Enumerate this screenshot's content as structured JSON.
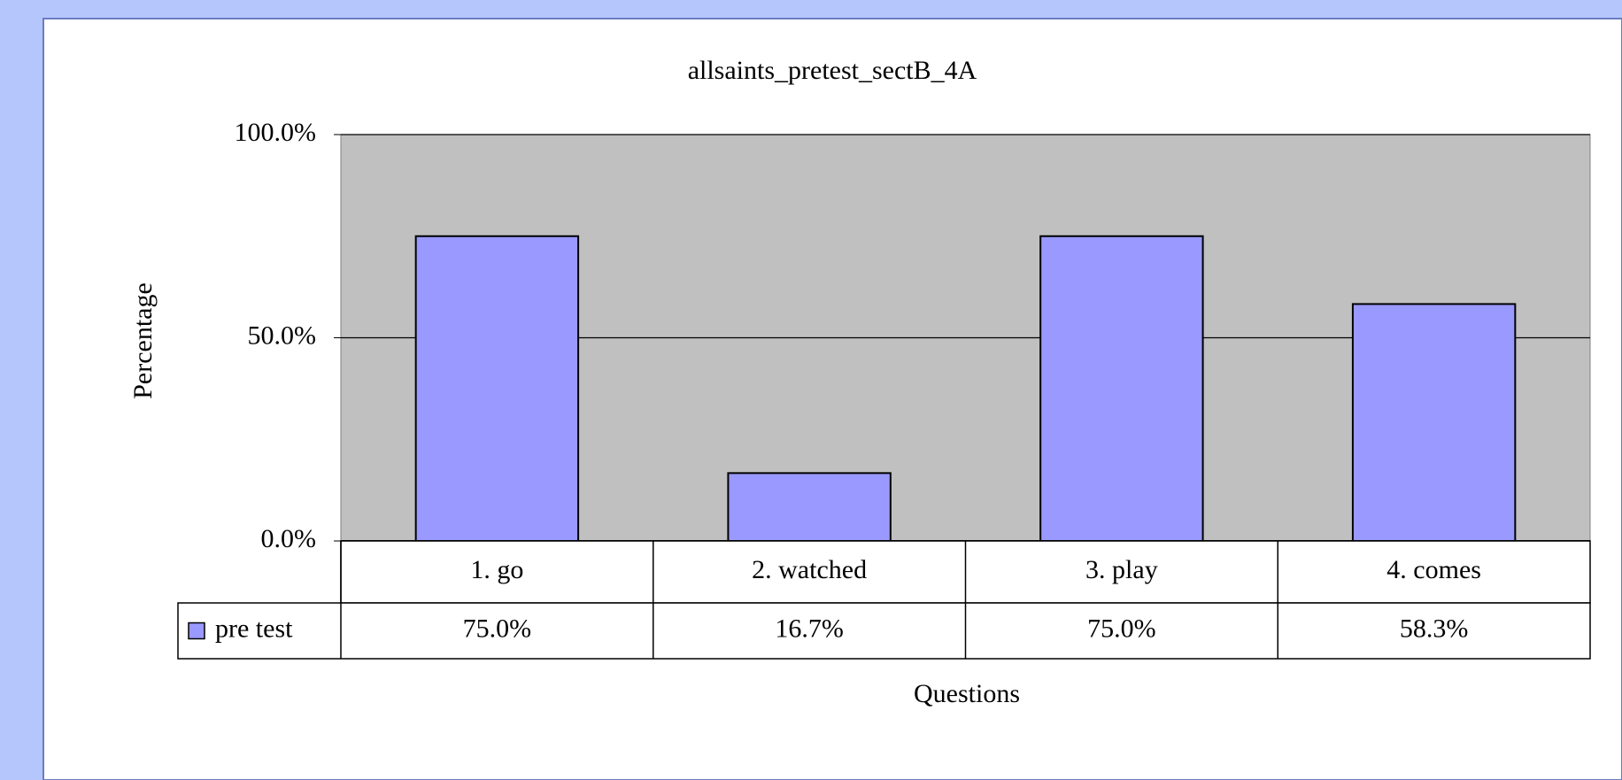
{
  "chart_data": {
    "type": "bar",
    "title": "allsaints_pretest_sectB_4A",
    "x_label": "Questions",
    "y_label": "Percentage",
    "categories": [
      "1. go",
      "2. watched",
      "3. play",
      "4. comes"
    ],
    "series": [
      {
        "name": "pre test",
        "color": "#9999ff",
        "values": [
          75.0,
          16.7,
          75.0,
          58.3
        ],
        "value_labels": [
          "75.0%",
          "16.7%",
          "75.0%",
          "58.3%"
        ]
      }
    ],
    "ylim": [
      0,
      100
    ],
    "yticks": [
      {
        "value": 0,
        "label": "0.0%"
      },
      {
        "value": 50,
        "label": "50.0%"
      },
      {
        "value": 100,
        "label": "100.0%"
      }
    ],
    "grid": true,
    "data_table": true
  }
}
